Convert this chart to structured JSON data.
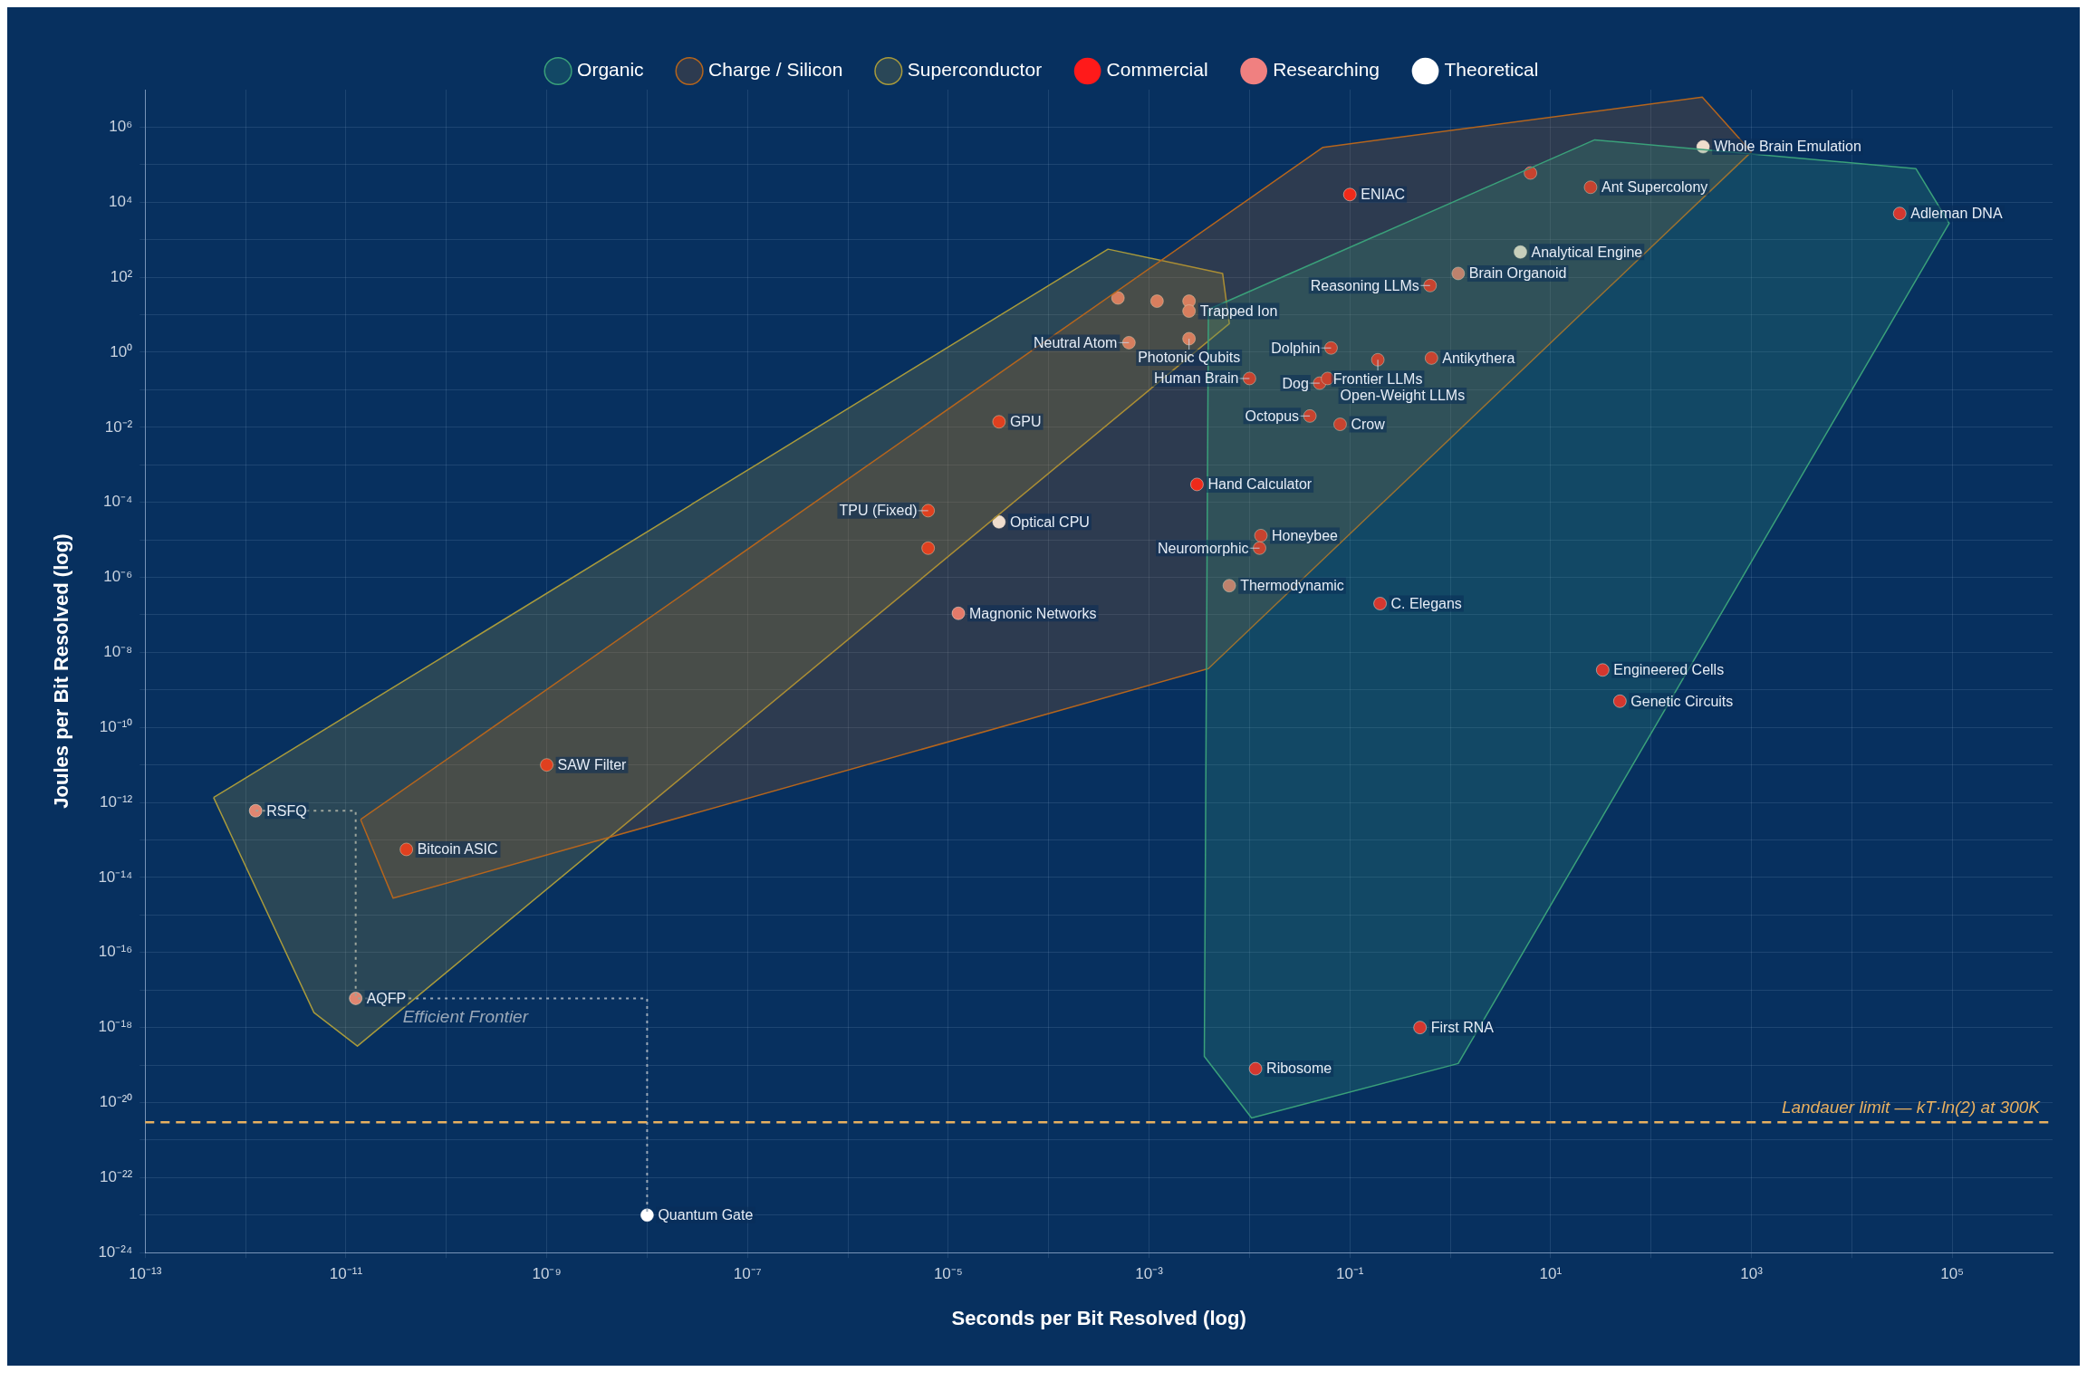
{
  "chart_data": {
    "type": "scatter",
    "xlabel": "Seconds per Bit Resolved (log)",
    "ylabel": "Joules per Bit Resolved (log)",
    "log": "xy",
    "grid": true,
    "legend": "top",
    "marker": "circle",
    "xlim": [
      1e-13,
      1000000.0
    ],
    "ylim": [
      1e-24,
      10000000.0
    ],
    "xticks": [
      {
        "value": 1e-13,
        "label": "10⁻¹³"
      },
      {
        "value": 1e-12,
        "label": null
      },
      {
        "value": 1e-11,
        "label": "10⁻¹¹"
      },
      {
        "value": 1e-10,
        "label": null
      },
      {
        "value": 1e-09,
        "label": "10⁻⁹"
      },
      {
        "value": 1e-08,
        "label": null
      },
      {
        "value": 1e-07,
        "label": "10⁻⁷"
      },
      {
        "value": 1e-06,
        "label": null
      },
      {
        "value": 1e-05,
        "label": "10⁻⁵"
      },
      {
        "value": 0.0001,
        "label": null
      },
      {
        "value": 0.001,
        "label": "10⁻³"
      },
      {
        "value": 0.01,
        "label": null
      },
      {
        "value": 0.1,
        "label": "10⁻¹"
      },
      {
        "value": 1,
        "label": null
      },
      {
        "value": 10,
        "label": "10¹"
      },
      {
        "value": 100,
        "label": null
      },
      {
        "value": 1000,
        "label": "10³"
      },
      {
        "value": 10000,
        "label": null
      },
      {
        "value": 100000,
        "label": "10⁵"
      }
    ],
    "yticks": [
      {
        "value": 1e-24,
        "label": "10⁻²⁴"
      },
      {
        "value": 1e-23,
        "label": null
      },
      {
        "value": 1e-22,
        "label": "10⁻²²"
      },
      {
        "value": 1e-21,
        "label": null
      },
      {
        "value": 1e-20,
        "label": "10⁻²⁰"
      },
      {
        "value": 1e-19,
        "label": null
      },
      {
        "value": 1e-18,
        "label": "10⁻¹⁸"
      },
      {
        "value": 1e-17,
        "label": null
      },
      {
        "value": 1e-16,
        "label": "10⁻¹⁶"
      },
      {
        "value": 1e-15,
        "label": null
      },
      {
        "value": 1e-14,
        "label": "10⁻¹⁴"
      },
      {
        "value": 1e-13,
        "label": null
      },
      {
        "value": 1e-12,
        "label": "10⁻¹²"
      },
      {
        "value": 1e-11,
        "label": null
      },
      {
        "value": 1e-10,
        "label": "10⁻¹⁰"
      },
      {
        "value": 1e-09,
        "label": null
      },
      {
        "value": 1e-08,
        "label": "10⁻⁸"
      },
      {
        "value": 1e-07,
        "label": null
      },
      {
        "value": 1e-06,
        "label": "10⁻⁶"
      },
      {
        "value": 1e-05,
        "label": null
      },
      {
        "value": 0.0001,
        "label": "10⁻⁴"
      },
      {
        "value": 0.001,
        "label": null
      },
      {
        "value": 0.01,
        "label": "10⁻²"
      },
      {
        "value": 0.1,
        "label": null
      },
      {
        "value": 1,
        "label": "10⁰"
      },
      {
        "value": 10,
        "label": null
      },
      {
        "value": 100,
        "label": "10²"
      },
      {
        "value": 1000,
        "label": null
      },
      {
        "value": 10000,
        "label": "10⁴"
      },
      {
        "value": 100000,
        "label": null
      },
      {
        "value": 1000000,
        "label": "10⁶"
      }
    ],
    "series": [
      {
        "name": "Organic",
        "type": "area",
        "marker": "none",
        "color": "#3aa07a",
        "x": [
          0.0039,
          27.5,
          43600,
          93300,
          1.2,
          0.0105,
          0.00355
        ],
        "values": [
          13.8,
          460000.0,
          78000.0,
          2750,
          1.1e-19,
          3.9e-21,
          1.7e-19
        ]
      },
      {
        "name": "Charge / Silicon",
        "type": "area",
        "marker": "none",
        "color": "#b5651d",
        "x": [
          1.4e-11,
          0.054,
          324,
          1000,
          0.0039,
          2.95e-11
        ],
        "values": [
          3.5e-13,
          290000.0,
          6300000.0,
          220000.0,
          3.7e-09,
          2.8e-15
        ]
      },
      {
        "name": "Superconductor",
        "type": "area",
        "marker": "none",
        "color": "#a89a3c",
        "x": [
          4.8e-13,
          0.00039,
          0.0054,
          0.0063,
          1.3e-11,
          4.8e-12
        ],
        "values": [
          1.35e-12,
          560,
          126,
          5.8,
          3.2e-19,
          2.5e-18
        ]
      },
      {
        "name": "Efficient Frontier",
        "type": "step",
        "marker": "none",
        "color": "#9aa8b8",
        "line_style": "dotted",
        "x": [
          1.26e-12,
          1.25e-11,
          1e-08
        ],
        "values": [
          6e-13,
          6e-18,
          1e-23
        ]
      },
      {
        "name": "Commercial",
        "color": "#ff1a1a",
        "x": [
          0.1,
          6.3,
          25,
          30000.0,
          0.63,
          0.065,
          0.65,
          0.19,
          0.05,
          0.06,
          0.01,
          0.04,
          0.08,
          0.003,
          0.013,
          0.0126,
          0.2,
          33,
          49,
          0.5,
          0.0115,
          4e-11,
          1e-09,
          6.3e-06,
          6.3e-06,
          3.2e-05
        ],
        "values": [
          16000.0,
          60000.0,
          25000.0,
          5000.0,
          60,
          1.3,
          0.7,
          0.63,
          0.15,
          0.2,
          0.2,
          0.02,
          0.012,
          0.0003,
          1.3e-05,
          6e-06,
          2e-07,
          3.4e-09,
          5e-10,
          1e-18,
          8e-20,
          5.6e-14,
          1e-11,
          6e-06,
          6e-05,
          0.014
        ]
      },
      {
        "name": "Researching",
        "color": "#f08080",
        "x": [
          1.2,
          0.0063,
          1.25e-11,
          1.26e-12,
          1.26e-05,
          0.00063,
          0.0025,
          0.00049,
          0.0012,
          0.0025,
          0.0025
        ],
        "values": [
          126,
          6e-07,
          6e-18,
          6e-13,
          1.1e-07,
          1.8,
          2.3,
          28,
          23,
          23,
          12.5
        ]
      },
      {
        "name": "Theoretical",
        "color": "#ffffff",
        "x": [
          330,
          5,
          1e-08,
          3.2e-05
        ],
        "values": [
          300000.0,
          470,
          1e-23,
          3e-05
        ]
      }
    ],
    "ref_lines": [
      {
        "axis": "y",
        "value": 3e-21,
        "label": "Landauer limit — kT·ln(2) at 300K",
        "color": "#e8b060",
        "line_style": "dashed"
      }
    ],
    "annotations": [
      {
        "text": "ENIAC",
        "x": 0.1,
        "y": 16000.0
      },
      {
        "text": "Ant Supercolony",
        "x": 25,
        "y": 25000.0
      },
      {
        "text": "Adleman DNA",
        "x": 30000.0,
        "y": 5000.0
      },
      {
        "text": "Reasoning LLMs",
        "x": 0.63,
        "y": 60
      },
      {
        "text": "Dolphin",
        "x": 0.065,
        "y": 1.3
      },
      {
        "text": "Antikythera",
        "x": 0.65,
        "y": 0.7
      },
      {
        "text": "Frontier LLMs",
        "x": 0.19,
        "y": 0.63
      },
      {
        "text": "Dog",
        "x": 0.05,
        "y": 0.15
      },
      {
        "text": "Open-Weight LLMs",
        "x": 0.06,
        "y": 0.2
      },
      {
        "text": "Human Brain",
        "x": 0.01,
        "y": 0.2
      },
      {
        "text": "Octopus",
        "x": 0.04,
        "y": 0.02
      },
      {
        "text": "Crow",
        "x": 0.08,
        "y": 0.012
      },
      {
        "text": "Hand Calculator",
        "x": 0.003,
        "y": 0.0003
      },
      {
        "text": "Honeybee",
        "x": 0.013,
        "y": 1.3e-05
      },
      {
        "text": "Neuromorphic",
        "x": 0.0126,
        "y": 6e-06
      },
      {
        "text": "C. Elegans",
        "x": 0.2,
        "y": 2e-07
      },
      {
        "text": "Engineered Cells",
        "x": 33,
        "y": 3.4e-09
      },
      {
        "text": "Genetic Circuits",
        "x": 49,
        "y": 5e-10
      },
      {
        "text": "First RNA",
        "x": 0.5,
        "y": 1e-18
      },
      {
        "text": "Ribosome",
        "x": 0.0115,
        "y": 8e-20
      },
      {
        "text": "Bitcoin ASIC",
        "x": 4e-11,
        "y": 5.6e-14
      },
      {
        "text": "SAW Filter",
        "x": 1e-09,
        "y": 1e-11
      },
      {
        "text": "TPU (Fixed)",
        "x": 6.3e-06,
        "y": 6e-05
      },
      {
        "text": "GPU",
        "x": 3.2e-05,
        "y": 0.014
      },
      {
        "text": "Brain Organoid",
        "x": 1.2,
        "y": 126
      },
      {
        "text": "Thermodynamic",
        "x": 0.0063,
        "y": 6e-07
      },
      {
        "text": "AQFP",
        "x": 1.25e-11,
        "y": 6e-18
      },
      {
        "text": "RSFQ",
        "x": 1.26e-12,
        "y": 6e-13
      },
      {
        "text": "Magnonic Networks",
        "x": 1.26e-05,
        "y": 1.1e-07
      },
      {
        "text": "Neutral Atom",
        "x": 0.00063,
        "y": 1.8
      },
      {
        "text": "Photonic Qubits",
        "x": 0.0025,
        "y": 2.3
      },
      {
        "text": "Trapped Ion",
        "x": 0.0025,
        "y": 12.5
      },
      {
        "text": "Whole Brain Emulation",
        "x": 330,
        "y": 300000.0
      },
      {
        "text": "Analytical Engine",
        "x": 5,
        "y": 470
      },
      {
        "text": "Quantum Gate",
        "x": 1e-08,
        "y": 1e-23
      },
      {
        "text": "Optical CPU",
        "x": 3.2e-05,
        "y": 3e-05
      }
    ]
  }
}
